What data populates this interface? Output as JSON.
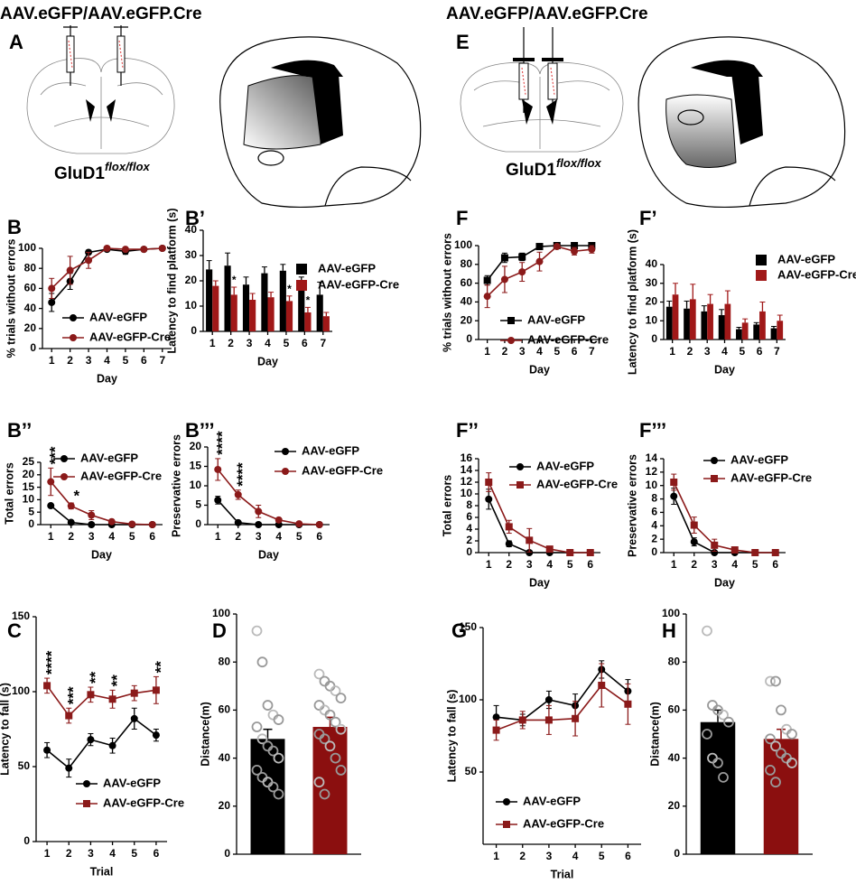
{
  "figure": {
    "headers": [
      "AAV.eGFP/AAV.eGFP.Cre",
      "AAV.eGFP/AAV.eGFP.Cre"
    ],
    "panels": [
      "A",
      "E"
    ],
    "genotype": "GluD1",
    "genotype_sup": "flox/flox"
  },
  "chart_data": [
    {
      "type": "line",
      "label": "B",
      "xlabel": "Day",
      "ylabel": "% trials without errors",
      "categories": [
        "1",
        "2",
        "3",
        "4",
        "5",
        "6",
        "7"
      ],
      "ylim": [
        0,
        100
      ],
      "yticks": [
        0,
        20,
        40,
        60,
        80,
        100
      ],
      "legend": "lower-right",
      "series": [
        {
          "name": "AAV-eGFP",
          "color": "#000000",
          "marker": "circle",
          "values": [
            46,
            67,
            96,
            99,
            97,
            99,
            100
          ],
          "errors": [
            9,
            8,
            2,
            1,
            3,
            1,
            0
          ]
        },
        {
          "name": "AAV-eGFP-Cre",
          "color": "#8b1a1a",
          "marker": "circle",
          "values": [
            60,
            78,
            88,
            100,
            99,
            99,
            100
          ],
          "errors": [
            10,
            14,
            8,
            1,
            1,
            1,
            0
          ]
        }
      ]
    },
    {
      "type": "bar",
      "label": "B’",
      "xlabel": "Day",
      "ylabel": "Latency to find platform (s)",
      "categories": [
        "1",
        "2",
        "3",
        "4",
        "5",
        "6",
        "7"
      ],
      "ylim": [
        0,
        40
      ],
      "yticks": [
        0,
        10,
        20,
        30,
        40
      ],
      "legend": "upper-right",
      "series": [
        {
          "name": "AAV-eGFP",
          "color": "#000000",
          "values": [
            24.5,
            26,
            18.5,
            23,
            24,
            19.5,
            14.5
          ],
          "errors": [
            3.5,
            5,
            3,
            2.5,
            2.5,
            2,
            5
          ]
        },
        {
          "name": "AAV-eGFP-Cre",
          "color": "#a01818",
          "values": [
            18,
            14.5,
            12.5,
            13.5,
            12,
            7.5,
            6
          ],
          "errors": [
            2,
            3,
            2.5,
            2,
            2,
            2,
            1.5
          ],
          "significance": [
            null,
            "*",
            null,
            null,
            "*",
            "*",
            null
          ]
        }
      ]
    },
    {
      "type": "line",
      "label": "B’’",
      "xlabel": "Day",
      "ylabel": "Total errors",
      "categories": [
        "1",
        "2",
        "3",
        "4",
        "5",
        "6"
      ],
      "ylim": [
        0,
        25
      ],
      "yticks": [
        0,
        5,
        10,
        15,
        20,
        25
      ],
      "legend": "upper-right",
      "series": [
        {
          "name": "AAV-eGFP",
          "color": "#000000",
          "marker": "circle",
          "values": [
            7.6,
            0.9,
            0,
            0,
            0,
            0
          ],
          "errors": [
            0.3,
            0.2,
            0,
            0,
            0,
            0
          ]
        },
        {
          "name": "AAV-eGFP-Cre",
          "color": "#8b1a1a",
          "marker": "circle",
          "values": [
            17.2,
            7.5,
            3.8,
            1.2,
            0.2,
            0
          ],
          "errors": [
            5.5,
            1.2,
            1.8,
            0.4,
            0.2,
            0
          ],
          "significance": [
            "***",
            "*",
            null,
            null,
            null,
            null
          ]
        }
      ]
    },
    {
      "type": "line",
      "label": "B’’’",
      "xlabel": "Day",
      "ylabel": "Preservative errors",
      "categories": [
        "1",
        "2",
        "3",
        "4",
        "5",
        "6"
      ],
      "ylim": [
        0,
        20
      ],
      "yticks": [
        0,
        5,
        10,
        15,
        20
      ],
      "legend": "upper-right",
      "series": [
        {
          "name": "AAV-eGFP",
          "color": "#000000",
          "marker": "circle",
          "values": [
            6.3,
            0.5,
            0,
            0,
            0,
            0
          ],
          "errors": [
            1,
            0.3,
            0,
            0,
            0,
            0
          ]
        },
        {
          "name": "AAV-eGFP-Cre",
          "color": "#8b1a1a",
          "marker": "circle",
          "values": [
            14.2,
            7.7,
            3.4,
            1.2,
            0.2,
            0
          ],
          "errors": [
            2.8,
            1.2,
            1.6,
            0.3,
            0.1,
            0
          ],
          "significance": [
            "****",
            "****",
            null,
            null,
            null,
            null
          ]
        }
      ]
    },
    {
      "type": "line",
      "label": "C",
      "xlabel": "Trial",
      "ylabel": "Latency to fall (s)",
      "categories": [
        "1",
        "2",
        "3",
        "4",
        "5",
        "6"
      ],
      "ylim": [
        0,
        150
      ],
      "yticks": [
        0,
        50,
        100,
        150
      ],
      "legend": "lower-left",
      "series": [
        {
          "name": "AAV-eGFP",
          "color": "#000000",
          "marker": "circle",
          "values": [
            61,
            49,
            68,
            64,
            82,
            71
          ],
          "errors": [
            5,
            6,
            4,
            5,
            7,
            4
          ]
        },
        {
          "name": "AAV-eGFP-Cre",
          "color": "#8b1a1a",
          "marker": "square",
          "values": [
            104,
            84,
            98,
            95,
            99,
            101
          ],
          "errors": [
            5,
            5,
            5,
            6,
            5,
            9
          ],
          "significance": [
            "****",
            "***",
            "**",
            "**",
            null,
            "**"
          ]
        }
      ]
    },
    {
      "type": "bar",
      "label": "D",
      "ylabel": "Distance(m)",
      "ylim": [
        0,
        100
      ],
      "yticks": [
        0,
        20,
        40,
        60,
        80,
        100
      ],
      "values": [
        48,
        53
      ],
      "errors": [
        4,
        4
      ],
      "colors": [
        "#000000",
        "#8b0f0f"
      ],
      "points": [
        [
          93,
          80,
          62,
          58,
          56,
          53,
          48,
          45,
          43,
          40,
          35,
          32,
          30,
          28,
          25
        ],
        [
          75,
          72,
          70,
          68,
          65,
          62,
          60,
          58,
          55,
          52,
          50,
          48,
          45,
          40,
          35,
          30,
          25
        ]
      ]
    },
    {
      "type": "line",
      "label": "F",
      "xlabel": "Day",
      "ylabel": "% trials without errors",
      "categories": [
        "1",
        "2",
        "3",
        "4",
        "5",
        "6",
        "7"
      ],
      "ylim": [
        0,
        100
      ],
      "yticks": [
        0,
        20,
        40,
        60,
        80,
        100
      ],
      "legend": "lower-right",
      "series": [
        {
          "name": "AAV-eGFP",
          "color": "#000000",
          "marker": "square",
          "values": [
            63,
            87,
            88,
            99,
            100,
            100,
            100
          ],
          "errors": [
            5,
            5,
            4,
            1,
            1,
            2,
            1
          ]
        },
        {
          "name": "AAV-eGFP-Cre",
          "color": "#8b1a1a",
          "marker": "circle",
          "values": [
            46,
            64,
            72,
            83,
            99,
            94,
            96
          ],
          "errors": [
            12,
            14,
            10,
            10,
            1,
            4,
            4
          ]
        }
      ]
    },
    {
      "type": "bar",
      "label": "F’",
      "xlabel": "Day",
      "ylabel": "Latency to find platform (s)",
      "categories": [
        "1",
        "2",
        "3",
        "4",
        "5",
        "6",
        "7"
      ],
      "ylim": [
        0,
        40
      ],
      "yticks": [
        0,
        10,
        20,
        30,
        40
      ],
      "legend": "upper-right",
      "series": [
        {
          "name": "AAV-eGFP",
          "color": "#000000",
          "values": [
            17.5,
            16.5,
            15,
            13,
            5.5,
            8,
            6
          ],
          "errors": [
            3,
            4,
            3,
            3,
            1,
            1,
            1
          ]
        },
        {
          "name": "AAV-eGFP-Cre",
          "color": "#a01818",
          "values": [
            24,
            21.5,
            19,
            19,
            9,
            15,
            10
          ],
          "errors": [
            6,
            8,
            5,
            7,
            2,
            5,
            3
          ]
        }
      ]
    },
    {
      "type": "line",
      "label": "F’’",
      "xlabel": "Day",
      "ylabel": "Total errors",
      "categories": [
        "1",
        "2",
        "3",
        "4",
        "5",
        "6"
      ],
      "ylim": [
        0,
        16
      ],
      "yticks": [
        0,
        2,
        4,
        6,
        8,
        10,
        12,
        14,
        16
      ],
      "legend": "upper-right",
      "series": [
        {
          "name": "AAV-eGFP",
          "color": "#000000",
          "marker": "circle",
          "values": [
            9.1,
            1.5,
            0,
            0,
            0,
            0
          ],
          "errors": [
            1.7,
            0.5,
            0,
            0,
            0,
            0
          ]
        },
        {
          "name": "AAV-eGFP-Cre",
          "color": "#8b1a1a",
          "marker": "square",
          "values": [
            12,
            4.4,
            2.1,
            0.6,
            0,
            0
          ],
          "errors": [
            1.6,
            1.1,
            2,
            0.3,
            0,
            0
          ]
        }
      ]
    },
    {
      "type": "line",
      "label": "F’’’",
      "xlabel": "Day",
      "ylabel": "Preservative errors",
      "categories": [
        "1",
        "2",
        "3",
        "4",
        "5",
        "6"
      ],
      "ylim": [
        0,
        14
      ],
      "yticks": [
        0,
        2,
        4,
        6,
        8,
        10,
        12,
        14
      ],
      "legend": "upper-right",
      "series": [
        {
          "name": "AAV-eGFP",
          "color": "#000000",
          "marker": "circle",
          "values": [
            8.4,
            1.6,
            0,
            0,
            0,
            0
          ],
          "errors": [
            1.2,
            0.6,
            0,
            0,
            0,
            0
          ]
        },
        {
          "name": "AAV-eGFP-Cre",
          "color": "#8b1a1a",
          "marker": "square",
          "values": [
            10.5,
            4.1,
            1.1,
            0.4,
            0,
            0
          ],
          "errors": [
            1.2,
            1.2,
            0.9,
            0.2,
            0,
            0
          ]
        }
      ]
    },
    {
      "type": "line",
      "label": "G",
      "xlabel": "Trial",
      "ylabel": "Latency to fall (s)",
      "categories": [
        "1",
        "2",
        "3",
        "4",
        "5",
        "6"
      ],
      "ylim": [
        0,
        150
      ],
      "yticks": [
        50,
        100,
        150
      ],
      "legend": "lower-left",
      "series": [
        {
          "name": "AAV-eGFP",
          "color": "#000000",
          "marker": "circle",
          "values": [
            88,
            86,
            100,
            96,
            121,
            106
          ],
          "errors": [
            8,
            4,
            6,
            8,
            6,
            8
          ]
        },
        {
          "name": "AAV-eGFP-Cre",
          "color": "#8b1a1a",
          "marker": "square",
          "values": [
            79,
            86,
            86,
            87,
            110,
            97
          ],
          "errors": [
            7,
            6,
            10,
            12,
            15,
            14
          ]
        }
      ]
    },
    {
      "type": "bar",
      "label": "H",
      "ylabel": "Distance(m)",
      "ylim": [
        0,
        100
      ],
      "yticks": [
        0,
        20,
        40,
        60,
        80,
        100
      ],
      "values": [
        55,
        48
      ],
      "errors": [
        5,
        4
      ],
      "colors": [
        "#000000",
        "#8b0f0f"
      ],
      "points": [
        [
          93,
          62,
          60,
          58,
          55,
          50,
          40,
          38,
          32
        ],
        [
          72,
          72,
          60,
          52,
          50,
          48,
          45,
          42,
          40,
          38,
          35,
          30
        ]
      ]
    }
  ]
}
